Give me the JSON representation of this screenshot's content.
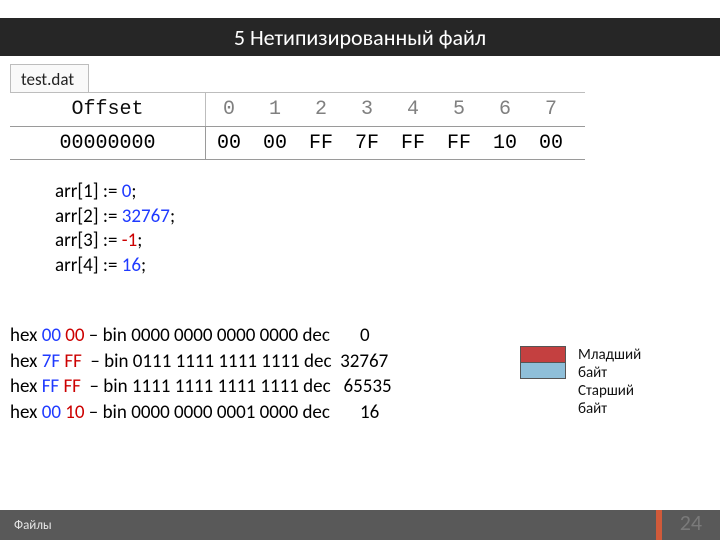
{
  "title": "5 Нетипизированный файл",
  "tab_label": "test.dat",
  "offset_label": "Offset",
  "cols": [
    "0",
    "1",
    "2",
    "3",
    "4",
    "5",
    "6",
    "7"
  ],
  "offset_val": "00000000",
  "bytes": [
    "00",
    "00",
    "FF",
    "7F",
    "FF",
    "FF",
    "10",
    "00"
  ],
  "code": [
    {
      "var": "arr[1] := ",
      "val": "0",
      "color": "blue",
      "tail": ";"
    },
    {
      "var": "arr[2] := ",
      "val": "32767",
      "color": "blue",
      "tail": ";"
    },
    {
      "var": "arr[3] := ",
      "val": "-1",
      "color": "red",
      "tail": ";"
    },
    {
      "var": "arr[4] := ",
      "val": "16",
      "color": "blue",
      "tail": ";"
    }
  ],
  "expl": [
    {
      "p": "hex ",
      "b1": "00",
      "c1": "blue",
      "sp": " ",
      "b2": "00",
      "c2": "red",
      "rest": " – bin 0000 0000 0000 0000 dec       0"
    },
    {
      "p": "hex ",
      "b1": "7F",
      "c1": "blue",
      "sp": " ",
      "b2": "FF",
      "c2": "red",
      "rest": "  – bin 0111 1111 1111 1111 dec  32767"
    },
    {
      "p": "hex ",
      "b1": "FF",
      "c1": "blue",
      "sp": " ",
      "b2": "FF",
      "c2": "red",
      "rest": "  – bin 1111 1111 1111 1111 dec   65535"
    },
    {
      "p": "hex ",
      "b1": "00",
      "c1": "blue",
      "sp": " ",
      "b2": "10",
      "c2": "red",
      "rest": " – bin 0000 0000 0001 0000 dec       16"
    }
  ],
  "legend": {
    "line1": "Младший",
    "line2": "байт",
    "line3": "Старший",
    "line4": "байт"
  },
  "footer_text": "Файлы",
  "page_num": "24",
  "colors": {
    "title_bg": "#262626",
    "footer_bg": "#595959",
    "accent": "#d05a3a",
    "blue": "#1f3aff",
    "red": "#cc0000",
    "swatch_red": "#c44040",
    "swatch_blue": "#8fbfd9"
  }
}
